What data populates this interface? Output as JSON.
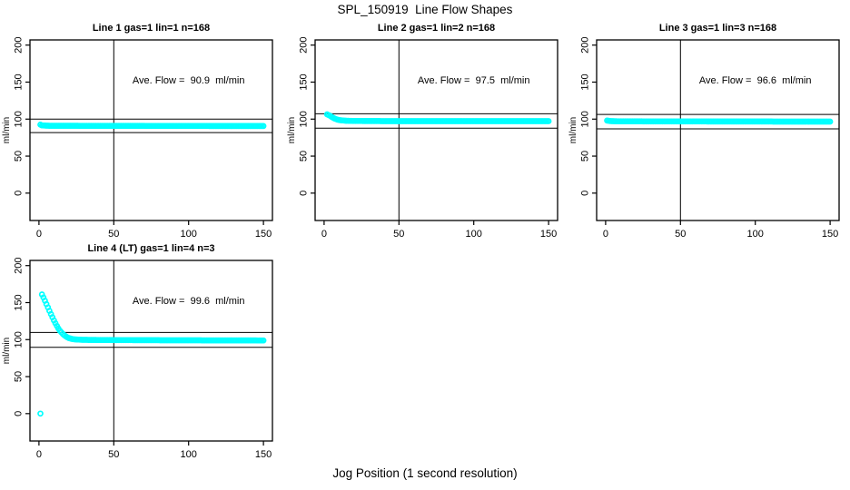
{
  "chart_data": {
    "type": "scatter",
    "figure_title": "SPL_150919  Line Flow Shapes",
    "figure_xlabel": "Jog Position (1 second resolution)",
    "ylabel": "ml/min",
    "xlim": [
      -6,
      156
    ],
    "ylim": [
      -37,
      207
    ],
    "x_ticks": [
      0,
      50,
      100,
      150
    ],
    "y_ticks": [
      0,
      50,
      100,
      150,
      200
    ],
    "grid": false,
    "legend": "none",
    "point_color": "#00ffff",
    "axis_color": "#000000",
    "annotation_x": 100,
    "annotation_y": 148,
    "plots": [
      {
        "title": "Line 1 gas=1 lin=1 n=168",
        "ylabel": "ml/min",
        "annotation": "Ave. Flow =  90.9  ml/min",
        "ave_flow": 90.9,
        "n": 168,
        "vline_x": 50,
        "hlines": [
          100.0,
          81.8
        ],
        "series": {
          "step": 1,
          "keypoints": [
            [
              1,
              92.5
            ],
            [
              2,
              91.5
            ],
            [
              4,
              91.2
            ],
            [
              8,
              91.0
            ],
            [
              150,
              90.6
            ]
          ]
        }
      },
      {
        "title": "Line 2 gas=1 lin=2 n=168",
        "ylabel": "ml/min",
        "annotation": "Ave. Flow =  97.5  ml/min",
        "ave_flow": 97.5,
        "n": 168,
        "vline_x": 50,
        "hlines": [
          107.3,
          87.8
        ],
        "series": {
          "step": 1,
          "keypoints": [
            [
              2,
              106.5
            ],
            [
              3,
              105.5
            ],
            [
              4,
              104.5
            ],
            [
              5,
              103.2
            ],
            [
              6,
              101.8
            ],
            [
              7,
              100.8
            ],
            [
              8,
              99.9
            ],
            [
              9,
              99.2
            ],
            [
              10,
              98.7
            ],
            [
              12,
              98.2
            ],
            [
              15,
              97.8
            ],
            [
              20,
              97.5
            ],
            [
              40,
              97.3
            ],
            [
              150,
              97.2
            ]
          ]
        }
      },
      {
        "title": "Line 3 gas=1 lin=3 n=168",
        "ylabel": "ml/min",
        "annotation": "Ave. Flow =  96.6  ml/min",
        "ave_flow": 96.6,
        "n": 168,
        "vline_x": 50,
        "hlines": [
          106.3,
          86.9
        ],
        "series": {
          "step": 1,
          "keypoints": [
            [
              1,
              98.0
            ],
            [
              3,
              97.4
            ],
            [
              8,
              97.0
            ],
            [
              150,
              96.6
            ]
          ]
        }
      },
      {
        "title": "Line 4 (LT) gas=1 lin=4 n=3",
        "ylabel": "ml/min",
        "annotation": "Ave. Flow =  99.6  ml/min",
        "ave_flow": 99.6,
        "n": 3,
        "vline_x": 50,
        "hlines": [
          109.6,
          89.6
        ],
        "series": {
          "step": 1,
          "keypoints": [
            [
              1,
              0
            ],
            [
              2,
              161
            ],
            [
              3,
              157
            ],
            [
              4,
              152.5
            ],
            [
              5,
              148
            ],
            [
              6,
              143.5
            ],
            [
              7,
              139
            ],
            [
              8,
              134.5
            ],
            [
              9,
              130.2
            ],
            [
              10,
              126
            ],
            [
              11,
              122
            ],
            [
              12,
              118.3
            ],
            [
              13,
              115
            ],
            [
              14,
              112
            ],
            [
              15,
              109.8
            ],
            [
              16,
              107.6
            ],
            [
              17,
              105.8
            ],
            [
              18,
              104.3
            ],
            [
              19,
              103
            ],
            [
              20,
              102.1
            ],
            [
              22,
              100.9
            ],
            [
              24,
              100.3
            ],
            [
              27,
              99.9
            ],
            [
              30,
              99.7
            ],
            [
              40,
              99.5
            ],
            [
              60,
              99.3
            ],
            [
              90,
              99.1
            ],
            [
              120,
              99.0
            ],
            [
              150,
              98.9
            ]
          ]
        }
      }
    ]
  }
}
